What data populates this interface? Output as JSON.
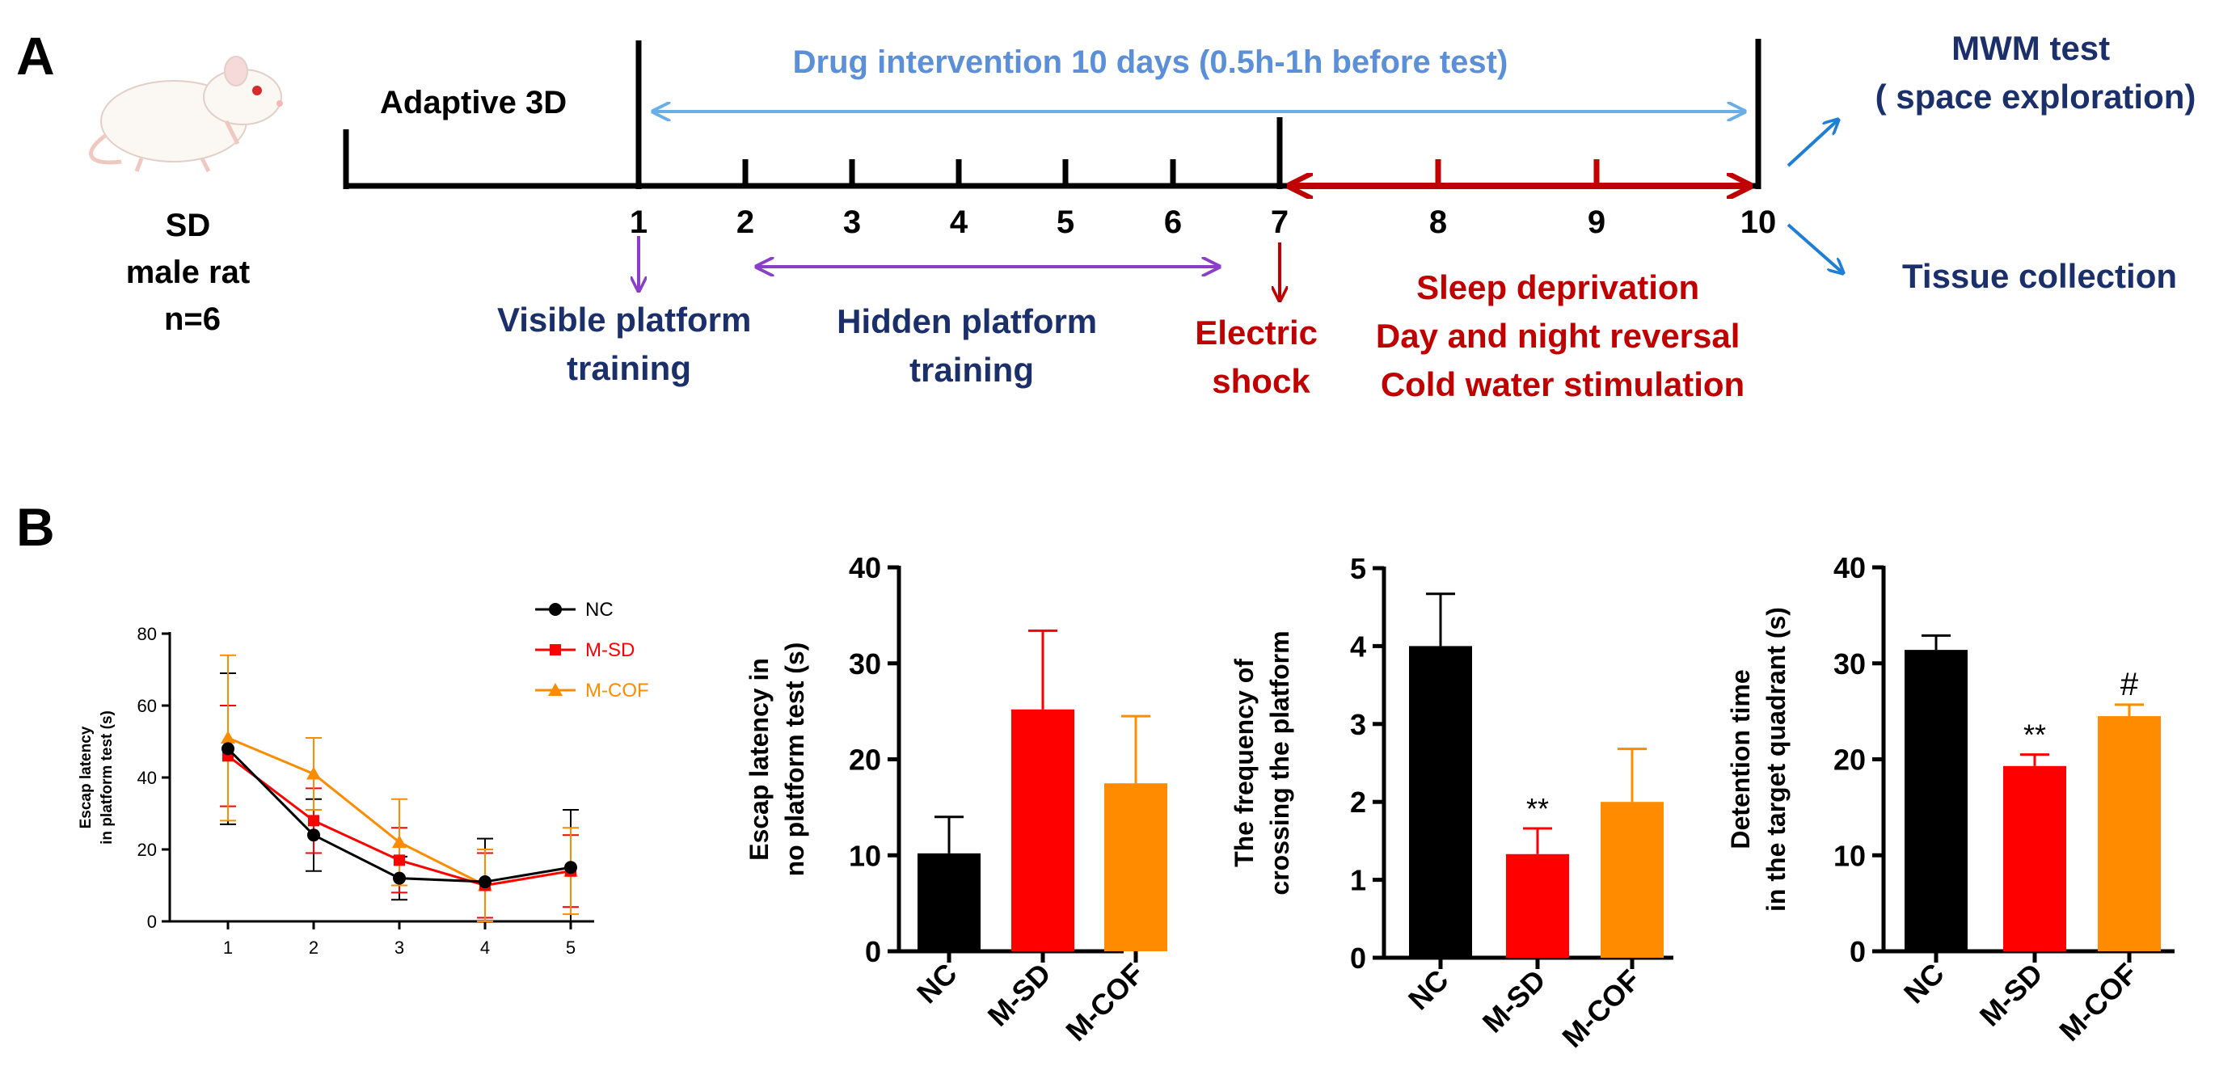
{
  "colors": {
    "navy": "#1B2F6B",
    "drug_blue": "#5B8FD8",
    "arrow_blue": "#6AAEE8",
    "purple": "#8A3FC9",
    "dark_red": "#C00000",
    "arrow_blue2": "#1E7FD6",
    "nc": "#000000",
    "msd": "#FF0000",
    "mcof": "#FF8C00"
  },
  "panel_a": {
    "label": "A",
    "animal_lines": [
      "SD",
      "male rat",
      "n=6"
    ],
    "adaptive": "Adaptive 3D",
    "drug": "Drug intervention 10 days (0.5h-1h before test)",
    "days": [
      "1",
      "2",
      "3",
      "4",
      "5",
      "6",
      "7",
      "8",
      "9",
      "10"
    ],
    "visible_lines": [
      "Visible platform",
      "training"
    ],
    "hidden_lines": [
      "Hidden platform",
      "training"
    ],
    "shock_lines": [
      "Electric",
      "shock"
    ],
    "stress_lines": [
      "Sleep deprivation",
      "Day and night reversal",
      "Cold water stimulation"
    ],
    "mwm_lines": [
      "MWM test",
      "( space exploration)"
    ],
    "tissue": "Tissue collection",
    "rat_icon": "rat-illustration"
  },
  "panel_b": {
    "label": "B"
  },
  "chart_data": [
    {
      "type": "line",
      "title": "",
      "xlabel": "",
      "ylabel_lines": [
        "Escap latency",
        "in  platform test (s)"
      ],
      "x": [
        1,
        2,
        3,
        4,
        5
      ],
      "xticks": [
        "1",
        "2",
        "3",
        "4",
        "5"
      ],
      "ylim": [
        0,
        80
      ],
      "yticks": [
        "0",
        "20",
        "40",
        "60",
        "80"
      ],
      "legend_position": "top-right",
      "series": [
        {
          "name": "NC",
          "color": "#000000",
          "marker": "circle",
          "values": [
            48,
            24,
            12,
            11,
            15
          ],
          "errors": [
            21,
            10,
            6,
            12,
            16
          ]
        },
        {
          "name": "M-SD",
          "color": "#FF0000",
          "marker": "square",
          "values": [
            46,
            28,
            17,
            10,
            14
          ],
          "errors": [
            14,
            9,
            9,
            9,
            10
          ]
        },
        {
          "name": "M-COF",
          "color": "#FF8C00",
          "marker": "triangle",
          "values": [
            51,
            41,
            22,
            10,
            14
          ],
          "errors": [
            23,
            10,
            12,
            10,
            12
          ]
        }
      ]
    },
    {
      "type": "bar",
      "ylabel_lines": [
        "Escap latency in",
        "no platform test (s)"
      ],
      "categories": [
        "NC",
        "M-SD",
        "M-COF"
      ],
      "colors": [
        "#000000",
        "#FF0000",
        "#FF8C00"
      ],
      "values": [
        10.2,
        25.2,
        17.5
      ],
      "errors": [
        3.8,
        8.2,
        7.0
      ],
      "ylim": [
        0,
        40
      ],
      "yticks": [
        "0",
        "10",
        "20",
        "30",
        "40"
      ],
      "annotations": [
        "",
        "",
        ""
      ]
    },
    {
      "type": "bar",
      "ylabel_lines": [
        "The frequency of",
        "crossing the platform"
      ],
      "categories": [
        "NC",
        "M-SD",
        "M-COF"
      ],
      "colors": [
        "#000000",
        "#FF0000",
        "#FF8C00"
      ],
      "values": [
        4.0,
        1.33,
        2.0
      ],
      "errors": [
        0.67,
        0.33,
        0.68
      ],
      "ylim": [
        0,
        5
      ],
      "yticks": [
        "0",
        "1",
        "2",
        "3",
        "4",
        "5"
      ],
      "annotations": [
        "",
        "**",
        ""
      ]
    },
    {
      "type": "bar",
      "ylabel_lines": [
        "Detention time",
        "in the target quadrant (s)"
      ],
      "categories": [
        "NC",
        "M-SD",
        "M-COF"
      ],
      "colors": [
        "#000000",
        "#FF0000",
        "#FF8C00"
      ],
      "values": [
        31.4,
        19.3,
        24.5
      ],
      "errors": [
        1.5,
        1.2,
        1.2
      ],
      "ylim": [
        0,
        40
      ],
      "yticks": [
        "0",
        "10",
        "20",
        "30",
        "40"
      ],
      "annotations": [
        "",
        "**",
        "#"
      ]
    }
  ]
}
